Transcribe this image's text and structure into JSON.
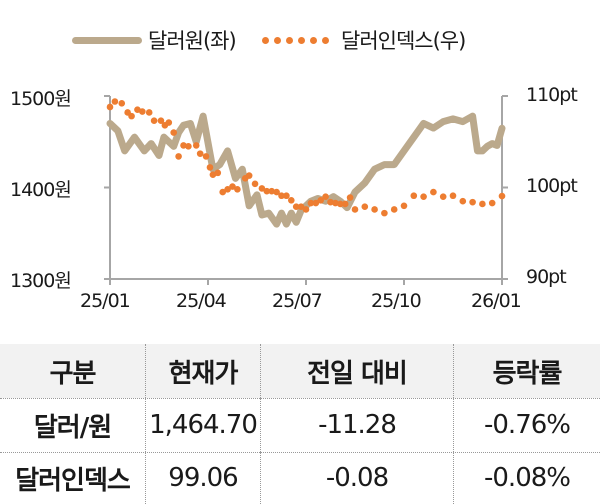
{
  "legend": {
    "series1_label": "달러원(좌)",
    "series2_label": "달러인덱스(우)",
    "series1_color": "#bba98c",
    "series2_color": "#ed7d31"
  },
  "axes": {
    "left_ticks": [
      "1500원",
      "1400원",
      "1300원"
    ],
    "right_ticks": [
      "110pt",
      "100pt",
      "90pt"
    ],
    "x_ticks": [
      "25/01",
      "25/04",
      "25/07",
      "25/10",
      "26/01"
    ],
    "axis_color": "#a6a6a6"
  },
  "table": {
    "headers": [
      "구분",
      "현재가",
      "전일 대비",
      "등락률"
    ],
    "rows": [
      [
        "달러/원",
        "1,464.70",
        "-11.28",
        "-0.76%"
      ],
      [
        "달러인덱스",
        "99.06",
        "-0.08",
        "-0.08%"
      ]
    ],
    "header_bg": "#f2f2f2"
  },
  "chart_data": {
    "type": "line",
    "title": "",
    "xlabel": "",
    "ylabel": "",
    "categories": [
      "25/01",
      "25/04",
      "25/07",
      "25/10",
      "26/01"
    ],
    "x_range": [
      "25/01",
      "26/01"
    ],
    "ylim_left": [
      1300,
      1500
    ],
    "ylim_right": [
      90,
      110
    ],
    "legend_position": "top",
    "grid": false,
    "series": [
      {
        "name": "달러원(좌)",
        "axis": "left",
        "style": "thick-line",
        "x": [
          0,
          0.08,
          0.15,
          0.25,
          0.35,
          0.42,
          0.5,
          0.55,
          0.6,
          0.65,
          0.7,
          0.75,
          0.82,
          0.88,
          0.95,
          1.05,
          1.12,
          1.2,
          1.28,
          1.35,
          1.42,
          1.5,
          1.55,
          1.62,
          1.7,
          1.75,
          1.8,
          1.85,
          1.9,
          1.95,
          2.0,
          2.05,
          2.12,
          2.2,
          2.28,
          2.35,
          2.42,
          2.5,
          2.6,
          2.7,
          2.8,
          2.9,
          3.0,
          3.1,
          3.2,
          3.3,
          3.4,
          3.5,
          3.6,
          3.7,
          3.75,
          3.8,
          3.85,
          3.9,
          3.95,
          4.0
        ],
        "values": [
          1470,
          1462,
          1440,
          1455,
          1440,
          1448,
          1435,
          1455,
          1450,
          1445,
          1460,
          1468,
          1470,
          1450,
          1478,
          1420,
          1425,
          1440,
          1410,
          1420,
          1380,
          1392,
          1370,
          1372,
          1360,
          1372,
          1360,
          1372,
          1362,
          1375,
          1380,
          1385,
          1388,
          1385,
          1390,
          1385,
          1378,
          1395,
          1405,
          1420,
          1425,
          1425,
          1440,
          1455,
          1470,
          1465,
          1472,
          1475,
          1472,
          1478,
          1440,
          1440,
          1445,
          1448,
          1446,
          1464.7
        ]
      },
      {
        "name": "달러인덱스(우)",
        "axis": "right",
        "style": "dotted",
        "x": [
          0,
          0.05,
          0.12,
          0.18,
          0.22,
          0.28,
          0.33,
          0.4,
          0.45,
          0.52,
          0.56,
          0.6,
          0.65,
          0.7,
          0.75,
          0.8,
          0.88,
          0.92,
          0.98,
          1.02,
          1.05,
          1.1,
          1.15,
          1.2,
          1.25,
          1.3,
          1.38,
          1.42,
          1.48,
          1.55,
          1.6,
          1.65,
          1.7,
          1.75,
          1.8,
          1.85,
          1.9,
          1.95,
          2.0,
          2.05,
          2.1,
          2.15,
          2.2,
          2.25,
          2.3,
          2.35,
          2.4,
          2.45,
          2.5,
          2.6,
          2.7,
          2.8,
          2.9,
          3.0,
          3.1,
          3.2,
          3.3,
          3.4,
          3.5,
          3.6,
          3.7,
          3.8,
          3.9,
          4.0
        ],
        "values": [
          108.8,
          109.4,
          109.2,
          108.2,
          107.8,
          108.5,
          108.3,
          108.2,
          107.3,
          107.3,
          106.8,
          107.1,
          106.0,
          103.4,
          104.6,
          104.5,
          104.6,
          103.7,
          103.4,
          102.2,
          101.4,
          101.6,
          99.5,
          99.8,
          100.1,
          99.8,
          101.0,
          101.3,
          100.4,
          99.9,
          99.6,
          99.6,
          99.5,
          99.1,
          99.1,
          98.6,
          97.9,
          97.9,
          97.6,
          98.3,
          98.3,
          98.6,
          99.0,
          98.4,
          98.3,
          98.2,
          98.2,
          98.9,
          97.6,
          97.9,
          97.6,
          97.2,
          97.6,
          98.0,
          99.1,
          99.0,
          99.5,
          99.0,
          99.1,
          98.5,
          98.4,
          98.2,
          98.3,
          99.06
        ]
      }
    ]
  }
}
